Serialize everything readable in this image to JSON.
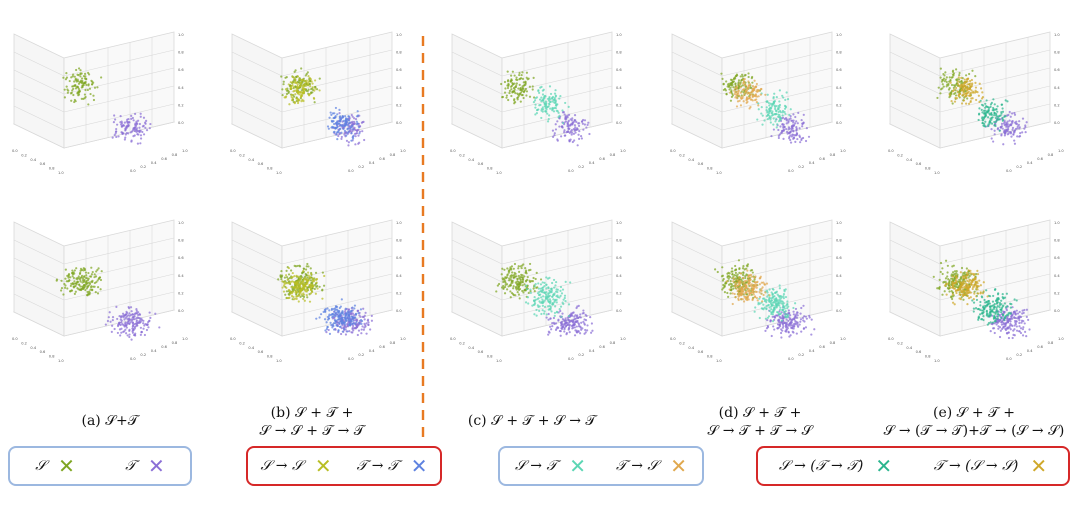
{
  "colors": {
    "S": "#7fa622",
    "T": "#8b6fd6",
    "S_to_S": "#b8be24",
    "T_to_T": "#5e82e0",
    "S_to_T": "#5cd6b4",
    "T_to_S": "#e0a84e",
    "S_TT": "#2bb58e",
    "T_SS": "#cfa82a",
    "divider": "#e87a22",
    "legend_blue": "#9cb8e0",
    "legend_red": "#d62828"
  },
  "captions": [
    {
      "line1": "(a) 𝒮+𝒯",
      "line2": ""
    },
    {
      "line1": "(b) 𝒮 + 𝒯 +",
      "line2": "𝒮 → 𝒮 + 𝒯 → 𝒯"
    },
    {
      "line1": "(c) 𝒮 + 𝒯 + 𝒮 → 𝒯",
      "line2": ""
    },
    {
      "line1": "(d) 𝒮 + 𝒯 +",
      "line2": "𝒮 → 𝒯 + 𝒯 → 𝒮"
    },
    {
      "line1": "(e) 𝒮 + 𝒯 +",
      "line2": "𝒮 → (𝒯 → 𝒯)+𝒯 → (𝒮 → 𝒮)"
    }
  ],
  "legends": [
    {
      "style": "blue",
      "items": [
        {
          "label": "𝒮",
          "mark": "✕",
          "color": "#7fa622"
        },
        {
          "label": "𝒯",
          "mark": "✕",
          "color": "#8b6fd6"
        }
      ]
    },
    {
      "style": "red",
      "items": [
        {
          "label": "𝒮 → 𝒮",
          "mark": "✕",
          "color": "#b8be24"
        },
        {
          "label": "𝒯 → 𝒯",
          "mark": "✕",
          "color": "#5e82e0"
        }
      ]
    },
    {
      "style": "blue",
      "items": [
        {
          "label": "𝒮 → 𝒯",
          "mark": "✕",
          "color": "#5cd6b4"
        },
        {
          "label": "𝒯 → 𝒮",
          "mark": "✕",
          "color": "#e0a84e"
        }
      ]
    },
    {
      "style": "red",
      "items": [
        {
          "label": "𝒮 → (𝒯 → 𝒯)",
          "mark": "✕",
          "color": "#2bb58e"
        },
        {
          "label": "𝒯 → (𝒮 → 𝒮)",
          "mark": "✕",
          "color": "#cfa82a"
        }
      ]
    }
  ],
  "chart_data": {
    "type": "scatter",
    "subtype": "3d-scatter grid",
    "rows": 2,
    "columns": 5,
    "tick_labels": [
      "0.0",
      "0.2",
      "0.4",
      "0.6",
      "0.8",
      "1.0"
    ],
    "xlim": [
      0,
      1
    ],
    "ylim": [
      0,
      1
    ],
    "zlim": [
      0,
      1
    ],
    "grid": true,
    "panels": [
      {
        "id": "a",
        "clusters": [
          "S",
          "T"
        ]
      },
      {
        "id": "b",
        "clusters": [
          "S",
          "T",
          "S_to_S",
          "T_to_T"
        ]
      },
      {
        "id": "c",
        "clusters": [
          "S",
          "T",
          "S_to_T"
        ]
      },
      {
        "id": "d",
        "clusters": [
          "S",
          "T",
          "S_to_T",
          "T_to_S"
        ]
      },
      {
        "id": "e",
        "clusters": [
          "S",
          "T",
          "S_TT",
          "T_SS"
        ]
      }
    ]
  }
}
